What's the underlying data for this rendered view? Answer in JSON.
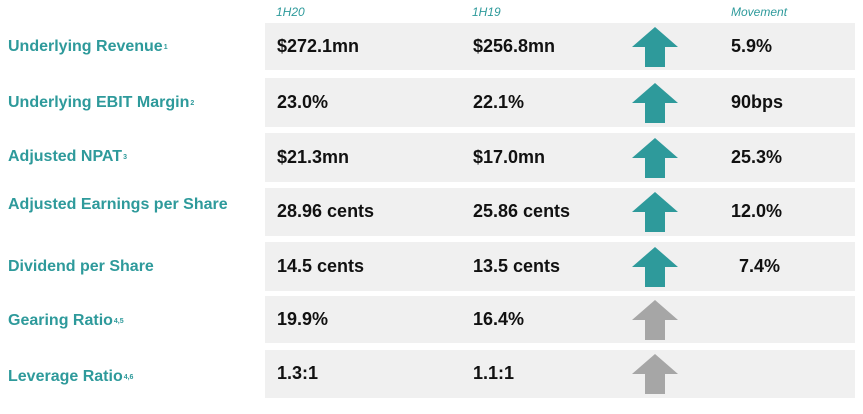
{
  "header": {
    "col1": "1H20",
    "col2": "1H19",
    "col3": "Movement"
  },
  "colors": {
    "accent": "#2e9a9b",
    "arrow_up": "#2e9a9b",
    "arrow_neutral": "#a6a6a6",
    "band": "#f0f0f0"
  },
  "rows": [
    {
      "label": "Underlying Revenue",
      "note": "1",
      "v1": "$272.1mn",
      "v2": "$256.8mn",
      "movement": "5.9%",
      "arrow": "up-icon"
    },
    {
      "label": "Underlying EBIT Margin",
      "note": "2",
      "v1": "23.0%",
      "v2": "22.1%",
      "movement": "90bps",
      "arrow": "up-icon"
    },
    {
      "label": "Adjusted NPAT",
      "note": "3",
      "v1": "$21.3mn",
      "v2": "$17.0mn",
      "movement": "25.3%",
      "arrow": "up-icon"
    },
    {
      "label": "Adjusted Earnings per Share",
      "note": "",
      "v1": "28.96 cents",
      "v2": "25.86 cents",
      "movement": "12.0%",
      "arrow": "up-icon"
    },
    {
      "label": "Dividend per Share",
      "note": "",
      "v1": "14.5 cents",
      "v2": "13.5 cents",
      "movement": "7.4%",
      "arrow": "up-icon"
    },
    {
      "label": "Gearing Ratio",
      "note": "4,5",
      "v1": "19.9%",
      "v2": "16.4%",
      "movement": "",
      "arrow": "neutral-up-icon"
    },
    {
      "label": "Leverage Ratio",
      "note": "4,6",
      "v1": "1.3:1",
      "v2": "1.1:1",
      "movement": "",
      "arrow": "neutral-up-icon"
    }
  ]
}
